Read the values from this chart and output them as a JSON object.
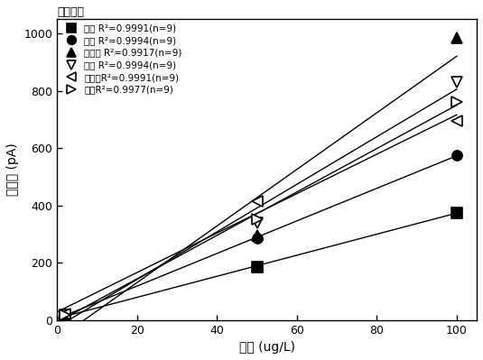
{
  "title": "标准曲线",
  "xlabel": "浓度 (ug/L)",
  "ylabel": "峰面积 (pA)",
  "xlim": [
    0,
    105
  ],
  "ylim": [
    0,
    1050
  ],
  "xticks": [
    0,
    20,
    40,
    60,
    80,
    100
  ],
  "yticks": [
    0,
    200,
    400,
    600,
    800,
    1000
  ],
  "series": [
    {
      "label": "乙酸 R²=0.9991(n=9)",
      "marker": "s",
      "filled": true,
      "color": "black",
      "x": [
        2,
        50,
        100
      ],
      "y": [
        15,
        185,
        375
      ]
    },
    {
      "label": "丙酸 R²=0.9994(n=9)",
      "marker": "o",
      "filled": true,
      "color": "black",
      "x": [
        2,
        50,
        100
      ],
      "y": [
        18,
        285,
        575
      ]
    },
    {
      "label": "异丁酸 R²=0.9917(n=9)",
      "marker": "^",
      "filled": true,
      "color": "black",
      "x": [
        2,
        50,
        100
      ],
      "y": [
        20,
        295,
        985
      ]
    },
    {
      "label": "丁酸 R²=0.9994(n=9)",
      "marker": "v",
      "filled": false,
      "color": "black",
      "x": [
        2,
        50,
        100
      ],
      "y": [
        18,
        340,
        830
      ]
    },
    {
      "label": "异戊酸R²=0.9991(n=9)",
      "marker": "<",
      "filled": false,
      "color": "black",
      "x": [
        2,
        50,
        100
      ],
      "y": [
        20,
        415,
        695
      ]
    },
    {
      "label": "戊酸R²=0.9977(n=9)",
      "marker": ">",
      "filled": false,
      "color": "black",
      "x": [
        2,
        50,
        100
      ],
      "y": [
        18,
        350,
        760
      ]
    }
  ]
}
